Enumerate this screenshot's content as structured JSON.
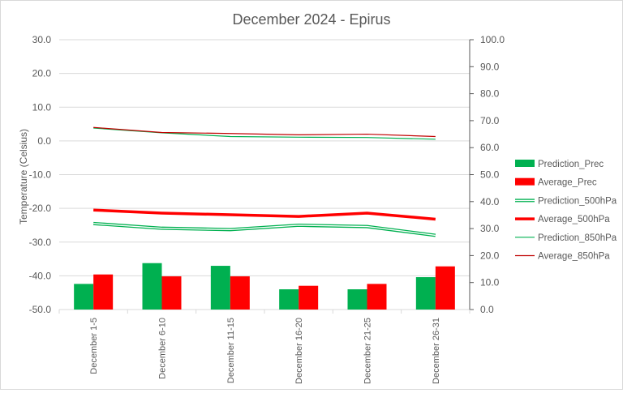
{
  "chart_data": {
    "type": "bar",
    "title": "December 2024 - Epirus",
    "ylabel": "Temperature (Celsius)",
    "y2label": "",
    "categories": [
      "December 1-5",
      "December 6-10",
      "December 11-15",
      "December 16-20",
      "December 21-25",
      "December 26-31"
    ],
    "ylim": [
      -50,
      30
    ],
    "y2lim": [
      0,
      100
    ],
    "y_ticks": [
      "30.0",
      "20.0",
      "10.0",
      "0.0",
      "-10.0",
      "-20.0",
      "-30.0",
      "-40.0",
      "-50.0"
    ],
    "y2_ticks": [
      "100.0",
      "90.0",
      "80.0",
      "70.0",
      "60.0",
      "50.0",
      "40.0",
      "30.0",
      "20.0",
      "10.0",
      "0.0"
    ],
    "bar_series": [
      {
        "name": "Prediction_Prec",
        "color": "#00b050",
        "axis": "secondary",
        "values": [
          9.5,
          17.2,
          16.2,
          7.5,
          7.5,
          12.0
        ]
      },
      {
        "name": "Average_Prec",
        "color": "#ff0000",
        "axis": "secondary",
        "values": [
          13.0,
          12.3,
          12.3,
          8.8,
          9.5,
          16.0
        ]
      }
    ],
    "line_series": [
      {
        "name": "Prediction_500hPa",
        "color": "#00b050",
        "style": "double",
        "axis": "primary",
        "values": [
          -24.5,
          -25.9,
          -26.3,
          -25.0,
          -25.4,
          -28.0
        ]
      },
      {
        "name": "Average_500hPa",
        "color": "#ff0000",
        "style": "thick",
        "axis": "primary",
        "values": [
          -20.5,
          -21.4,
          -21.9,
          -22.4,
          -21.4,
          -23.2
        ]
      },
      {
        "name": "Prediction_850hPa",
        "color": "#00b050",
        "style": "thin",
        "axis": "primary",
        "values": [
          3.8,
          2.4,
          1.3,
          1.1,
          1.0,
          0.5
        ]
      },
      {
        "name": "Average_850hPa",
        "color": "#c00000",
        "style": "thin",
        "axis": "primary",
        "values": [
          4.0,
          2.5,
          2.2,
          1.8,
          2.0,
          1.3
        ]
      }
    ],
    "legend_position": "right",
    "grid": true
  }
}
